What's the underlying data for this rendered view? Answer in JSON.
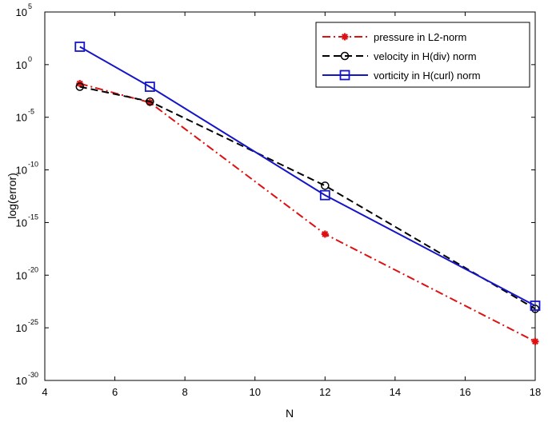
{
  "chart_data": {
    "type": "line",
    "xlabel": "N",
    "ylabel": "log(error)",
    "xlim": [
      4,
      18
    ],
    "ylim_log10": [
      -30,
      5
    ],
    "y_scale": "log",
    "x_ticks": [
      4,
      6,
      8,
      10,
      12,
      14,
      16,
      18
    ],
    "y_ticks": [
      {
        "base": "10",
        "exp": "5",
        "log10": 5
      },
      {
        "base": "10",
        "exp": "0",
        "log10": 0
      },
      {
        "base": "10",
        "exp": "-5",
        "log10": -5
      },
      {
        "base": "10",
        "exp": "-10",
        "log10": -10
      },
      {
        "base": "10",
        "exp": "-15",
        "log10": -15
      },
      {
        "base": "10",
        "exp": "-20",
        "log10": -20
      },
      {
        "base": "10",
        "exp": "-25",
        "log10": -25
      },
      {
        "base": "10",
        "exp": "-30",
        "log10": -30
      }
    ],
    "grid": false,
    "legend_position": "top-right",
    "series": [
      {
        "name": "pressure in L2-norm",
        "color": "#dd1111",
        "line_style": "dash-dot",
        "marker": "star",
        "x": [
          5,
          7,
          12,
          18
        ],
        "log10_y": [
          -1.8,
          -3.6,
          -16.1,
          -26.3
        ]
      },
      {
        "name": "velocity in H(div) norm",
        "color": "#000000",
        "line_style": "dashed",
        "marker": "circle",
        "x": [
          5,
          7,
          12,
          18
        ],
        "log10_y": [
          -2.1,
          -3.5,
          -11.5,
          -23.2
        ]
      },
      {
        "name": "vorticity in H(curl) norm",
        "color": "#1515c8",
        "line_style": "solid",
        "marker": "square",
        "x": [
          5,
          7,
          12,
          18
        ],
        "log10_y": [
          1.7,
          -2.1,
          -12.4,
          -22.9
        ]
      }
    ]
  }
}
